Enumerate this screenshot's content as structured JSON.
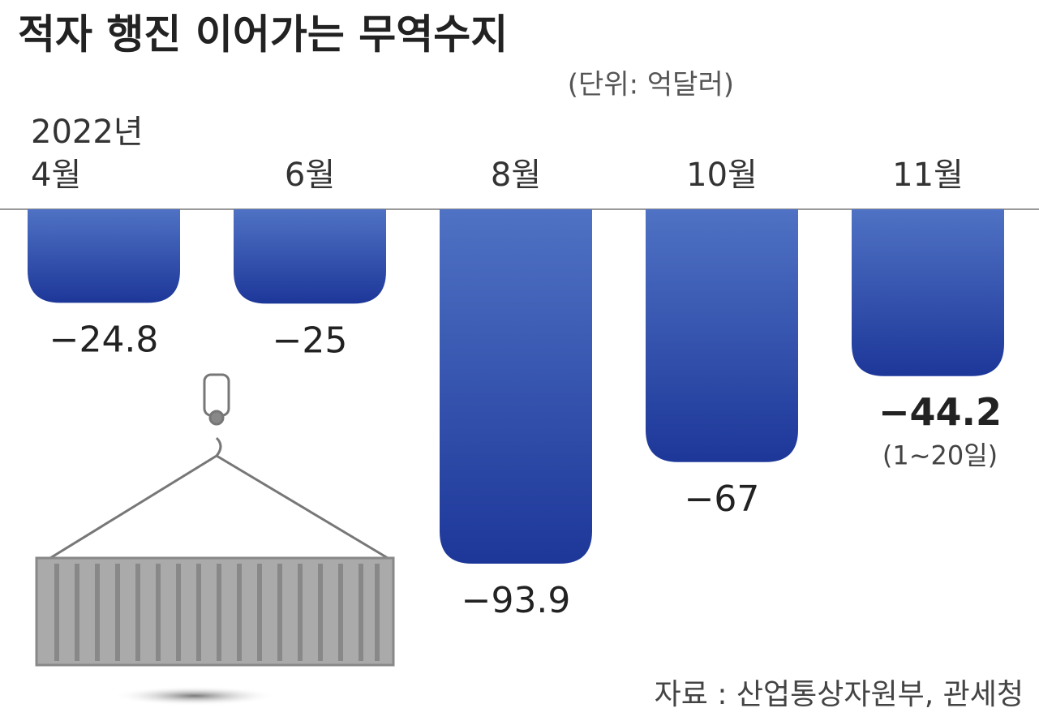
{
  "chart_data": {
    "type": "bar",
    "title": "적자 행진 이어가는 무역수지",
    "unit": "(단위: 억달러)",
    "year_label": "2022년",
    "categories": [
      "4월",
      "6월",
      "8월",
      "10월",
      "11월"
    ],
    "values": [
      -24.8,
      -25,
      -93.9,
      -67,
      -44.2
    ],
    "value_labels": [
      "−24.8",
      "−25",
      "−93.9",
      "−67",
      "−44.2"
    ],
    "annotation": "(1~20일)",
    "source": "자료 : 산업통상자원부, 관세청",
    "color": "#2f4fae"
  }
}
